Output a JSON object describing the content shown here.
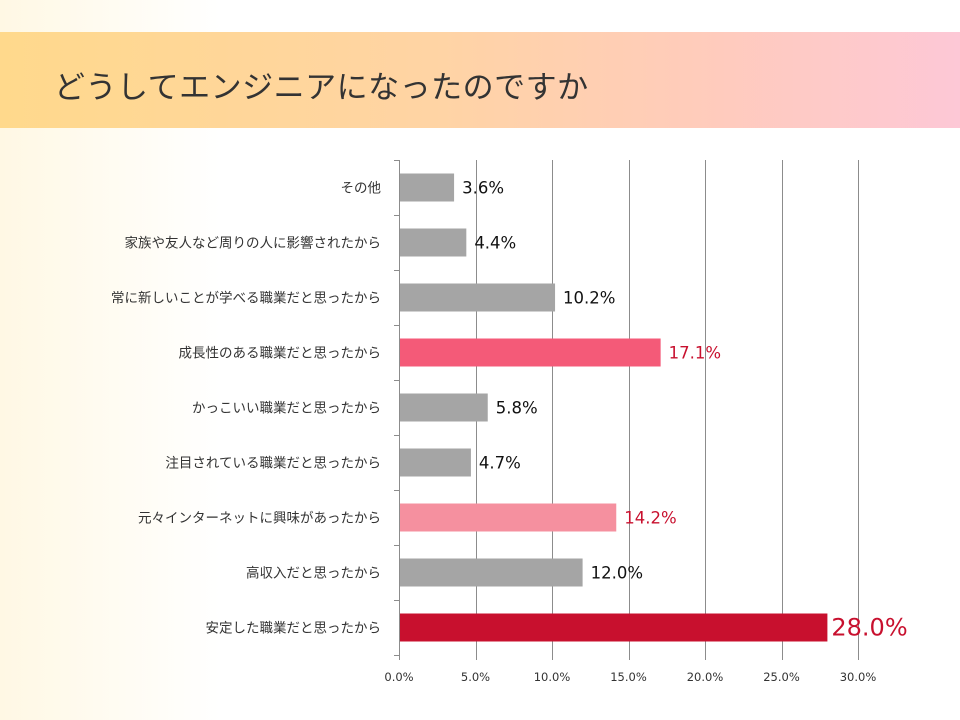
{
  "header": {
    "title": "どうしてエンジニアになったのですか"
  },
  "chart_data": {
    "type": "bar",
    "orientation": "horizontal",
    "title": "どうしてエンジニアになったのですか",
    "categories": [
      "その他",
      "家族や友人など周りの人に影響されたから",
      "常に新しいことが学べる職業だと思ったから",
      "成長性のある職業だと思ったから",
      "かっこいい職業だと思ったから",
      "注目されている職業だと思ったから",
      "元々インターネットに興味があったから",
      "高収入だと思ったから",
      "安定した職業だと思ったから"
    ],
    "values": [
      3.6,
      4.4,
      10.2,
      17.1,
      5.8,
      4.7,
      14.2,
      12.0,
      28.0
    ],
    "value_labels": [
      "3.6%",
      "4.4%",
      "10.2%",
      "17.1%",
      "5.8%",
      "4.7%",
      "14.2%",
      "12.0%",
      "28.0%"
    ],
    "bar_colors": [
      "#a5a5a5",
      "#a5a5a5",
      "#a5a5a5",
      "#f45a78",
      "#a5a5a5",
      "#a5a5a5",
      "#f5909f",
      "#a5a5a5",
      "#c8102e"
    ],
    "label_colors": [
      "#111111",
      "#111111",
      "#111111",
      "#c8102e",
      "#111111",
      "#111111",
      "#c8102e",
      "#111111",
      "#c8102e"
    ],
    "xlim": [
      0,
      30
    ],
    "xticks": [
      0,
      5,
      10,
      15,
      20,
      25,
      30
    ],
    "xtick_labels": [
      "0.0%",
      "5.0%",
      "10.0%",
      "15.0%",
      "20.0%",
      "25.0%",
      "30.0%"
    ],
    "grid": "vertical",
    "legend": "none"
  }
}
